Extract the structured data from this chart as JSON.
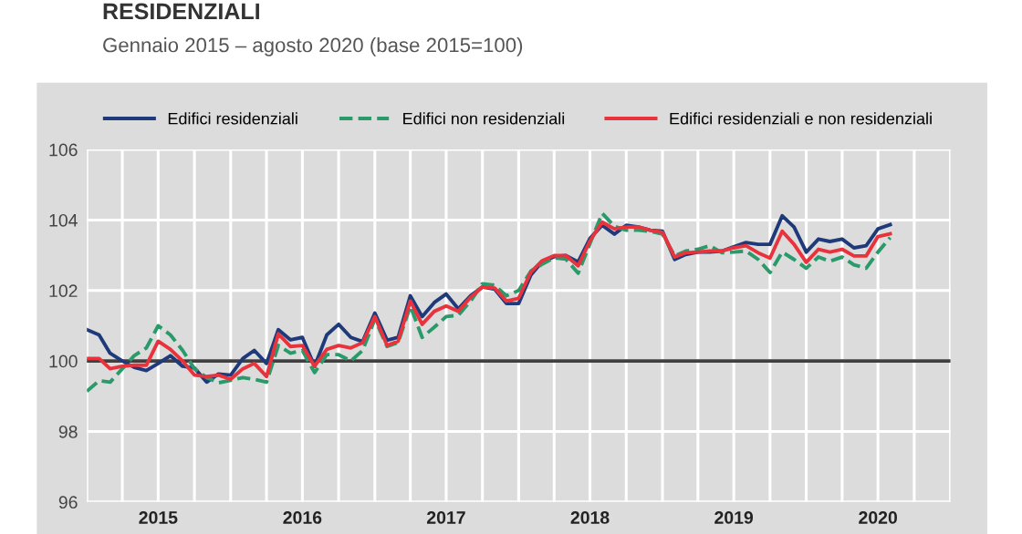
{
  "chart_data": {
    "type": "line",
    "title": "RESIDENZIALI",
    "subtitle": "Gennaio 2015 – agosto 2020 (base 2015=100)",
    "x": [
      "2015-01",
      "2015-02",
      "2015-03",
      "2015-04",
      "2015-05",
      "2015-06",
      "2015-07",
      "2015-08",
      "2015-09",
      "2015-10",
      "2015-11",
      "2015-12",
      "2016-01",
      "2016-02",
      "2016-03",
      "2016-04",
      "2016-05",
      "2016-06",
      "2016-07",
      "2016-08",
      "2016-09",
      "2016-10",
      "2016-11",
      "2016-12",
      "2017-01",
      "2017-02",
      "2017-03",
      "2017-04",
      "2017-05",
      "2017-06",
      "2017-07",
      "2017-08",
      "2017-09",
      "2017-10",
      "2017-11",
      "2017-12",
      "2018-01",
      "2018-02",
      "2018-03",
      "2018-04",
      "2018-05",
      "2018-06",
      "2018-07",
      "2018-08",
      "2018-09",
      "2018-10",
      "2018-11",
      "2018-12",
      "2019-01",
      "2019-02",
      "2019-03",
      "2019-04",
      "2019-05",
      "2019-06",
      "2019-07",
      "2019-08",
      "2019-09",
      "2019-10",
      "2019-11",
      "2019-12",
      "2020-01",
      "2020-02",
      "2020-03",
      "2020-04",
      "2020-05",
      "2020-06",
      "2020-07",
      "2020-08"
    ],
    "series": [
      {
        "name": "Edifici residenziali",
        "color": "#1f3a7a",
        "line_style": "solid",
        "values": [
          100.89,
          100.74,
          100.22,
          100.0,
          99.82,
          99.73,
          99.93,
          100.15,
          99.85,
          99.8,
          99.4,
          99.63,
          99.6,
          100.07,
          100.3,
          99.93,
          100.89,
          100.6,
          100.67,
          99.85,
          100.74,
          101.04,
          100.67,
          100.55,
          101.36,
          100.59,
          100.67,
          101.85,
          101.26,
          101.66,
          101.9,
          101.48,
          101.85,
          102.1,
          102.04,
          101.63,
          101.63,
          102.44,
          102.81,
          102.96,
          102.99,
          102.81,
          103.48,
          103.85,
          103.6,
          103.85,
          103.8,
          103.71,
          103.68,
          102.88,
          103.02,
          103.09,
          103.09,
          103.12,
          103.24,
          103.36,
          103.31,
          103.31,
          104.12,
          103.8,
          103.09,
          103.46,
          103.39,
          103.46,
          103.21,
          103.27,
          103.75,
          103.87
        ]
      },
      {
        "name": "Edifici non residenziali",
        "color": "#2a9a6a",
        "line_style": "dashed",
        "values": [
          99.14,
          99.44,
          99.4,
          99.78,
          100.15,
          100.37,
          101.0,
          100.74,
          100.3,
          99.78,
          99.53,
          99.38,
          99.45,
          99.53,
          99.48,
          99.4,
          100.44,
          100.22,
          100.3,
          99.67,
          100.18,
          100.18,
          100.0,
          100.3,
          101.19,
          100.41,
          100.52,
          101.56,
          100.67,
          100.96,
          101.26,
          101.3,
          101.7,
          102.19,
          102.15,
          101.85,
          102.0,
          102.55,
          102.74,
          102.93,
          102.89,
          102.49,
          103.33,
          104.19,
          103.82,
          103.71,
          103.71,
          103.68,
          103.6,
          102.98,
          103.12,
          103.17,
          103.27,
          103.07,
          103.09,
          103.12,
          102.88,
          102.51,
          103.09,
          102.88,
          102.63,
          102.95,
          102.83,
          102.95,
          102.73,
          102.63,
          103.09,
          103.5
        ]
      },
      {
        "name": "Edifici residenziali e non residenziali",
        "color": "#e8333d",
        "line_style": "solid",
        "values": [
          100.07,
          100.07,
          99.78,
          99.85,
          99.88,
          99.88,
          100.56,
          100.33,
          100.0,
          99.6,
          99.56,
          99.6,
          99.48,
          99.78,
          99.93,
          99.56,
          100.77,
          100.41,
          100.44,
          99.85,
          100.33,
          100.44,
          100.37,
          100.52,
          101.26,
          100.44,
          100.56,
          101.7,
          101.04,
          101.41,
          101.56,
          101.41,
          101.81,
          102.1,
          102.07,
          101.7,
          101.78,
          102.52,
          102.84,
          102.99,
          102.99,
          102.7,
          103.41,
          103.94,
          103.75,
          103.8,
          103.8,
          103.71,
          103.65,
          102.95,
          103.07,
          103.09,
          103.12,
          103.12,
          103.21,
          103.27,
          103.07,
          102.92,
          103.68,
          103.31,
          102.8,
          103.17,
          103.09,
          103.17,
          102.98,
          102.98,
          103.53,
          103.61
        ]
      }
    ],
    "xlim": [
      "2015-01",
      "2021-01"
    ],
    "xticks": [
      {
        "value": "2015-01",
        "label": null
      },
      {
        "value": "2015-04",
        "label": null
      },
      {
        "value": "2015-07",
        "label": "2015"
      },
      {
        "value": "2015-10",
        "label": null
      },
      {
        "value": "2016-01",
        "label": null
      },
      {
        "value": "2016-04",
        "label": null
      },
      {
        "value": "2016-07",
        "label": "2016"
      },
      {
        "value": "2016-10",
        "label": null
      },
      {
        "value": "2017-01",
        "label": null
      },
      {
        "value": "2017-04",
        "label": null
      },
      {
        "value": "2017-07",
        "label": "2017"
      },
      {
        "value": "2017-10",
        "label": null
      },
      {
        "value": "2018-01",
        "label": null
      },
      {
        "value": "2018-04",
        "label": null
      },
      {
        "value": "2018-07",
        "label": "2018"
      },
      {
        "value": "2018-10",
        "label": null
      },
      {
        "value": "2019-01",
        "label": null
      },
      {
        "value": "2019-04",
        "label": null
      },
      {
        "value": "2019-07",
        "label": "2019"
      },
      {
        "value": "2019-10",
        "label": null
      },
      {
        "value": "2020-01",
        "label": null
      },
      {
        "value": "2020-04",
        "label": null
      },
      {
        "value": "2020-07",
        "label": "2020"
      },
      {
        "value": "2020-10",
        "label": null
      },
      {
        "value": "2021-01",
        "label": null
      }
    ],
    "ylim": [
      96,
      106
    ],
    "yticks": [
      96,
      98,
      100,
      102,
      104,
      106
    ],
    "ref_lines": [
      {
        "axis": "y",
        "value": 100,
        "color": "#404040"
      }
    ],
    "grid": true,
    "legend": "top",
    "marker": "none"
  }
}
